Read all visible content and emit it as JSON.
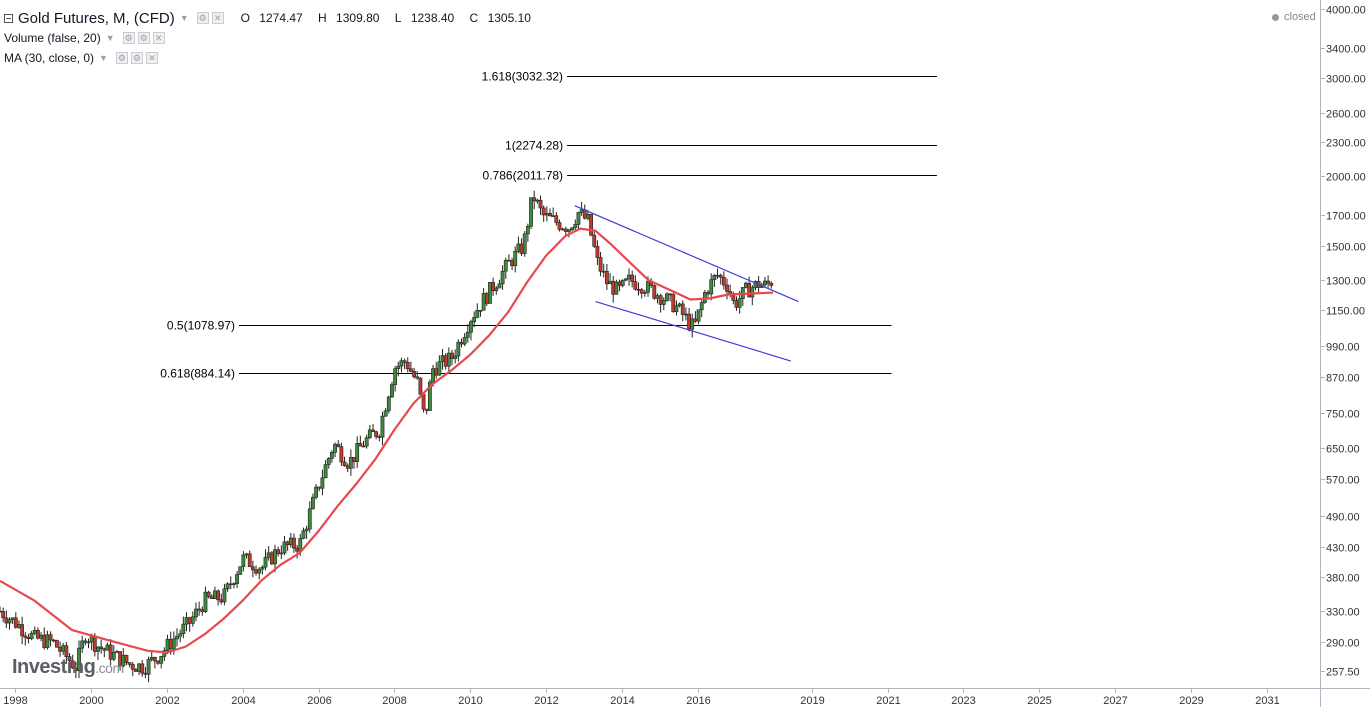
{
  "legend": {
    "symbol_title": "Gold Futures, M, (CFD)",
    "ohlc": {
      "o_label": "O",
      "o": "1274.47",
      "h_label": "H",
      "h": "1309.80",
      "l_label": "L",
      "l": "1238.40",
      "c_label": "C",
      "c": "1305.10"
    },
    "indicators": [
      {
        "label": "Volume (false, 20)"
      },
      {
        "label": "MA (30, close, 0)"
      }
    ]
  },
  "status": "closed",
  "branding": {
    "logo_main": "Investing",
    "logo_suffix": ".com"
  },
  "colors": {
    "up": "#3b8a3e",
    "down": "#c0392b",
    "ma": "#e8484e",
    "channel": "#3f3fd8",
    "fib": "#000000",
    "axis_text": "#333333",
    "axis_line": "#b2b5be"
  },
  "icons": [
    "collapse-icon",
    "dropdown-arrow-icon",
    "settings-icon",
    "close-icon"
  ],
  "chart_data": {
    "type": "candlestick",
    "scale": "log",
    "timeframe": "monthly",
    "ylim": [
      240,
      4150
    ],
    "xlim": [
      1997.6,
      2032.4
    ],
    "y_ticks": [
      "4000.00",
      "3400.00",
      "3000.00",
      "2600.00",
      "2300.00",
      "2000.00",
      "1700.00",
      "1500.00",
      "1300.00",
      "1150.00",
      "990.00",
      "870.00",
      "750.00",
      "650.00",
      "570.00",
      "490.00",
      "430.00",
      "380.00",
      "330.00",
      "290.00",
      "257.50"
    ],
    "x_ticks": [
      "1998",
      "2000",
      "2002",
      "2004",
      "2006",
      "2008",
      "2010",
      "2012",
      "2014",
      "2016",
      "2019",
      "2021",
      "2023",
      "2025",
      "2027",
      "2029",
      "2031"
    ],
    "price_path": [
      [
        1997.6,
        330
      ],
      [
        1998.0,
        315
      ],
      [
        1998.5,
        295
      ],
      [
        1999.0,
        290
      ],
      [
        1999.6,
        262
      ],
      [
        1999.85,
        300
      ],
      [
        2000.2,
        285
      ],
      [
        2000.6,
        275
      ],
      [
        2001.0,
        265
      ],
      [
        2001.4,
        262
      ],
      [
        2001.8,
        275
      ],
      [
        2002.2,
        295
      ],
      [
        2002.6,
        315
      ],
      [
        2003.0,
        345
      ],
      [
        2003.5,
        350
      ],
      [
        2004.0,
        410
      ],
      [
        2004.5,
        395
      ],
      [
        2005.0,
        430
      ],
      [
        2005.5,
        435
      ],
      [
        2006.0,
        555
      ],
      [
        2006.4,
        660
      ],
      [
        2006.8,
        610
      ],
      [
        2007.2,
        665
      ],
      [
        2007.6,
        700
      ],
      [
        2008.0,
        905
      ],
      [
        2008.3,
        930
      ],
      [
        2008.6,
        850
      ],
      [
        2008.8,
        730
      ],
      [
        2009.0,
        900
      ],
      [
        2009.5,
        940
      ],
      [
        2010.0,
        1110
      ],
      [
        2010.5,
        1240
      ],
      [
        2011.0,
        1390
      ],
      [
        2011.4,
        1500
      ],
      [
        2011.65,
        1850
      ],
      [
        2011.9,
        1700
      ],
      [
        2012.3,
        1650
      ],
      [
        2012.6,
        1620
      ],
      [
        2012.85,
        1720
      ],
      [
        2013.1,
        1660
      ],
      [
        2013.35,
        1400
      ],
      [
        2013.6,
        1290
      ],
      [
        2013.9,
        1240
      ],
      [
        2014.2,
        1300
      ],
      [
        2014.6,
        1270
      ],
      [
        2015.0,
        1220
      ],
      [
        2015.4,
        1170
      ],
      [
        2015.9,
        1065
      ],
      [
        2016.2,
        1240
      ],
      [
        2016.5,
        1330
      ],
      [
        2016.8,
        1270
      ],
      [
        2016.95,
        1175
      ],
      [
        2017.3,
        1250
      ],
      [
        2017.6,
        1280
      ],
      [
        2017.8,
        1270
      ],
      [
        2017.98,
        1305
      ]
    ],
    "moving_average": {
      "name": "MA (30, close, 0)",
      "points": [
        [
          1997.6,
          374
        ],
        [
          1998.5,
          345
        ],
        [
          1999.5,
          305
        ],
        [
          2000.5,
          292
        ],
        [
          2001.5,
          280
        ],
        [
          2002.0,
          278
        ],
        [
          2002.5,
          285
        ],
        [
          2003.0,
          300
        ],
        [
          2003.5,
          320
        ],
        [
          2004.0,
          345
        ],
        [
          2004.5,
          375
        ],
        [
          2005.0,
          400
        ],
        [
          2005.5,
          420
        ],
        [
          2006.0,
          460
        ],
        [
          2006.5,
          510
        ],
        [
          2007.0,
          560
        ],
        [
          2007.5,
          620
        ],
        [
          2008.0,
          700
        ],
        [
          2008.5,
          780
        ],
        [
          2009.0,
          845
        ],
        [
          2009.5,
          895
        ],
        [
          2010.0,
          955
        ],
        [
          2010.5,
          1035
        ],
        [
          2011.0,
          1140
        ],
        [
          2011.5,
          1290
        ],
        [
          2012.0,
          1440
        ],
        [
          2012.5,
          1560
        ],
        [
          2012.9,
          1610
        ],
        [
          2013.3,
          1595
        ],
        [
          2013.7,
          1510
        ],
        [
          2014.2,
          1400
        ],
        [
          2014.7,
          1300
        ],
        [
          2015.3,
          1245
        ],
        [
          2015.8,
          1200
        ],
        [
          2016.3,
          1205
        ],
        [
          2016.8,
          1225
        ],
        [
          2017.4,
          1230
        ],
        [
          2017.98,
          1235
        ]
      ]
    },
    "fibonacci_levels": [
      {
        "label": "1.618(3032.32)",
        "value": 3032.32,
        "from": 2012.55,
        "to": 2022.3
      },
      {
        "label": "1(2274.28)",
        "value": 2274.28,
        "from": 2012.55,
        "to": 2022.3
      },
      {
        "label": "0.786(2011.78)",
        "value": 2011.78,
        "from": 2012.55,
        "to": 2022.3
      },
      {
        "label": "0.5(1078.97)",
        "value": 1078.97,
        "from": 2003.9,
        "to": 2021.1
      },
      {
        "label": "0.618(884.14)",
        "value": 884.14,
        "from": 2003.9,
        "to": 2021.1
      }
    ],
    "trend_channel": [
      {
        "name": "upper",
        "from": [
          2012.75,
          1770
        ],
        "to": [
          2018.65,
          1190
        ]
      },
      {
        "name": "lower",
        "from": [
          2013.3,
          1190
        ],
        "to": [
          2018.45,
          930
        ]
      }
    ]
  }
}
